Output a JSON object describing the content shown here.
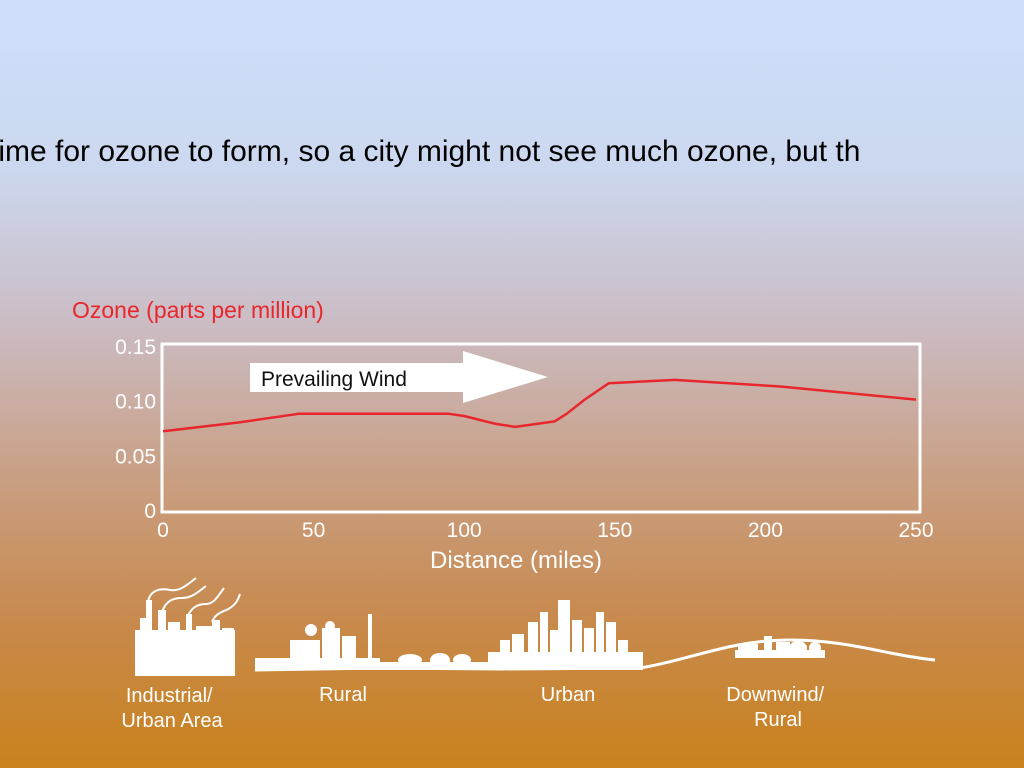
{
  "slide": {
    "caption": "time for ozone to form, so a city might not see much ozone, but th"
  },
  "colors": {
    "series": "#e8262b",
    "axis_title": "#e8262b",
    "frame": "#ffffff",
    "tick_text": "#ffffff"
  },
  "chart_data": {
    "type": "line",
    "title": "",
    "ylabel": "Ozone (parts per million)",
    "xlabel": "Distance (miles)",
    "xlim": [
      0,
      250
    ],
    "ylim": [
      0,
      0.15
    ],
    "x_ticks": [
      "0",
      "50",
      "100",
      "150",
      "200",
      "250"
    ],
    "y_ticks": [
      "0",
      "0.05",
      "0.10",
      "0.15"
    ],
    "grid": false,
    "series": [
      {
        "x": [
          0,
          25,
          45,
          95,
          100,
          110,
          117,
          130,
          134,
          140,
          148,
          170,
          205,
          250
        ],
        "y": [
          0.072,
          0.08,
          0.088,
          0.088,
          0.086,
          0.079,
          0.076,
          0.081,
          0.088,
          0.101,
          0.116,
          0.119,
          0.113,
          0.101
        ]
      }
    ],
    "annotations": [
      {
        "text": "Prevailing Wind",
        "shape": "arrow-right"
      }
    ],
    "landscape_labels": [
      "Industrial/\nUrban Area",
      "Rural",
      "Urban",
      "Downwind/\nRural"
    ]
  }
}
